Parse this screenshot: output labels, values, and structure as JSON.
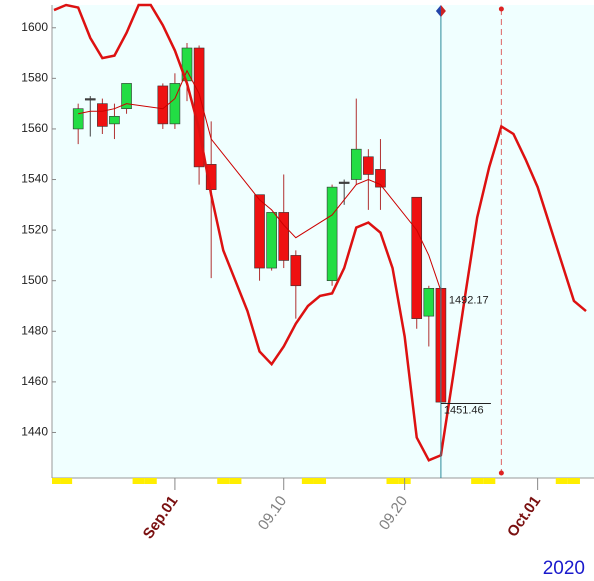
{
  "chart_data": {
    "type": "candlestick",
    "ylim": [
      1422,
      1609
    ],
    "yticks": [
      1440,
      1460,
      1480,
      1500,
      1520,
      1540,
      1560,
      1580,
      1600
    ],
    "xlim": [
      "2020-08-22",
      "2020-10-05"
    ],
    "xticks": [
      {
        "value": "2020-09-01",
        "label": "Sep.01",
        "color": "#7a1010"
      },
      {
        "value": "2020-09-10",
        "label": "09.10",
        "color": "#808080"
      },
      {
        "value": "2020-09-20",
        "label": "09.20",
        "color": "#808080"
      },
      {
        "value": "2020-10-01",
        "label": "Oct.01",
        "color": "#7a1010"
      }
    ],
    "up_color": "#22dd44",
    "down_color": "#ee1111",
    "x": [
      "2020-08-24",
      "2020-08-25",
      "2020-08-26",
      "2020-08-27",
      "2020-08-28",
      "2020-08-31",
      "2020-09-01",
      "2020-09-02",
      "2020-09-03",
      "2020-09-04",
      "2020-09-08",
      "2020-09-09",
      "2020-09-10",
      "2020-09-11",
      "2020-09-14",
      "2020-09-15",
      "2020-09-16",
      "2020-09-17",
      "2020-09-18",
      "2020-09-21",
      "2020-09-22",
      "2020-09-23"
    ],
    "open": [
      1560,
      1572,
      1570,
      1562,
      1568,
      1577,
      1562,
      1579,
      1592,
      1546,
      1534,
      1505,
      1527,
      1510,
      1500,
      1539,
      1540,
      1549,
      1544,
      1533,
      1486,
      1497
    ],
    "high": [
      1570,
      1573,
      1572,
      1570,
      1578,
      1578,
      1582,
      1594,
      1593,
      1563,
      1534,
      1527,
      1542,
      1512,
      1538,
      1540,
      1572,
      1552,
      1556,
      1533,
      1498,
      1497
    ],
    "low": [
      1554,
      1557,
      1558,
      1556,
      1566,
      1560,
      1560,
      1571,
      1538,
      1501,
      1500,
      1504,
      1505,
      1485,
      1498,
      1530,
      1538,
      1528,
      1528,
      1481,
      1474,
      1452
    ],
    "close": [
      1568,
      1572,
      1561,
      1565,
      1578,
      1562,
      1578,
      1592,
      1545,
      1536,
      1505,
      1527,
      1508,
      1498,
      1537,
      1539,
      1552,
      1542,
      1537,
      1485,
      1497,
      1452
    ],
    "moving_average": {
      "color": "#cc0000",
      "values": [
        1566,
        1567,
        1567,
        1568,
        1570,
        1568,
        1572,
        1583,
        1574,
        1556,
        1532,
        1528,
        1522,
        1517,
        1526,
        1532,
        1538,
        1540,
        1538,
        1520,
        1510,
        1496
      ]
    },
    "curve": {
      "color": "#dd1111",
      "x": [
        "2020-08-22",
        "2020-08-23",
        "2020-08-24",
        "2020-08-25",
        "2020-08-26",
        "2020-08-27",
        "2020-08-28",
        "2020-08-29",
        "2020-08-30",
        "2020-08-31",
        "2020-09-01",
        "2020-09-02",
        "2020-09-03",
        "2020-09-04",
        "2020-09-05",
        "2020-09-06",
        "2020-09-07",
        "2020-09-08",
        "2020-09-09",
        "2020-09-10",
        "2020-09-11",
        "2020-09-12",
        "2020-09-13",
        "2020-09-14",
        "2020-09-15",
        "2020-09-16",
        "2020-09-17",
        "2020-09-18",
        "2020-09-19",
        "2020-09-20",
        "2020-09-21",
        "2020-09-22",
        "2020-09-23",
        "2020-09-24",
        "2020-09-25",
        "2020-09-26",
        "2020-09-27",
        "2020-09-28",
        "2020-09-29",
        "2020-09-30",
        "2020-10-01",
        "2020-10-02",
        "2020-10-03",
        "2020-10-04",
        "2020-10-05"
      ],
      "values": [
        1607,
        1609,
        1608,
        1596,
        1588,
        1589,
        1598,
        1609,
        1609,
        1601,
        1591,
        1578,
        1560,
        1534,
        1512,
        1500,
        1488,
        1472,
        1467,
        1474,
        1483,
        1490,
        1494,
        1495,
        1505,
        1521,
        1523,
        1519,
        1505,
        1478,
        1438,
        1429,
        1431,
        1462,
        1494,
        1525,
        1545,
        1561,
        1558,
        1548,
        1537,
        1522,
        1507,
        1492,
        1488
      ]
    },
    "price_labels": [
      1492.17,
      1451.46
    ],
    "cursor_x": "2020-09-23",
    "marker_x": "2020-09-28",
    "year_label": "2020"
  }
}
